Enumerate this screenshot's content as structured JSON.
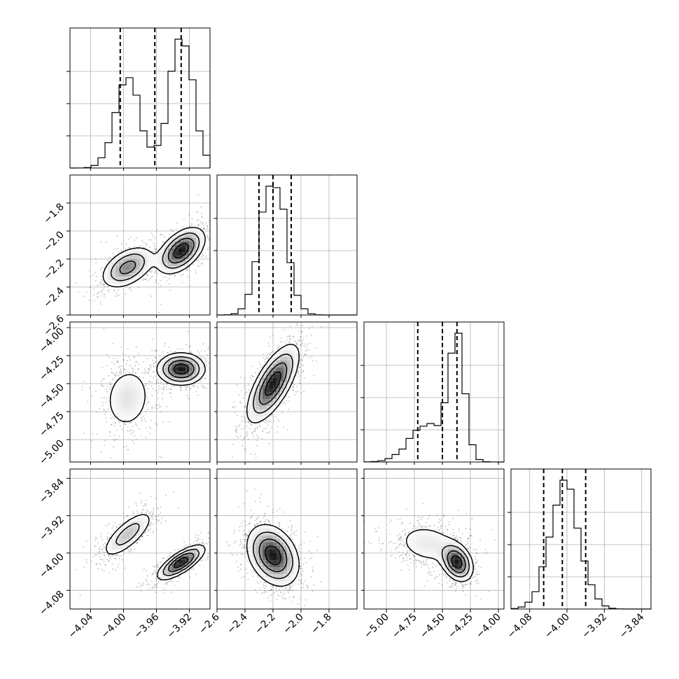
{
  "chart_data": {
    "type": "corner",
    "parameters": [
      {
        "id": "p0",
        "range": [
          -4.065,
          -3.895
        ],
        "ticks": [
          -4.04,
          -4.0,
          -3.96,
          -3.92
        ],
        "tick_labels": [
          "−4.04",
          "−4.00",
          "−3.96",
          "−3.92"
        ],
        "quantiles": [
          -4.004,
          -3.962,
          -3.93
        ],
        "modes": [
          {
            "mean": -3.995,
            "sd": 0.015,
            "weight": 0.42
          },
          {
            "mean": -3.93,
            "sd": 0.014,
            "weight": 0.58
          }
        ]
      },
      {
        "id": "p1",
        "range": [
          -2.6,
          -1.6
        ],
        "ticks": [
          -2.6,
          -2.4,
          -2.2,
          -2.0,
          -1.8
        ],
        "tick_labels": [
          "−2.6",
          "−2.4",
          "−2.2",
          "−2.0",
          "−1.8"
        ],
        "quantiles": [
          -2.3,
          -2.2,
          -2.07
        ],
        "modes": [
          {
            "mean": -2.2,
            "sd": 0.09,
            "weight": 1.0
          }
        ]
      },
      {
        "id": "p2",
        "range": [
          -5.2,
          -3.95
        ],
        "ticks": [
          -5.0,
          -4.75,
          -4.5,
          -4.25,
          -4.0
        ],
        "tick_labels": [
          "−5.00",
          "−4.75",
          "−4.50",
          "−4.25",
          "−4.00"
        ],
        "quantiles": [
          -4.72,
          -4.5,
          -4.37
        ],
        "modes": [
          {
            "mean": -4.63,
            "sd": 0.16,
            "weight": 0.42
          },
          {
            "mean": -4.37,
            "sd": 0.07,
            "weight": 0.58
          }
        ]
      },
      {
        "id": "p3",
        "range": [
          -4.12,
          -3.82
        ],
        "ticks": [
          -4.08,
          -4.0,
          -3.92,
          -3.84
        ],
        "tick_labels": [
          "−4.08",
          "−4.00",
          "−3.92",
          "−3.84"
        ],
        "quantiles": [
          -4.05,
          -4.01,
          -3.96
        ],
        "modes": [
          {
            "mean": -4.005,
            "sd": 0.032,
            "weight": 1.0
          }
        ]
      }
    ],
    "pair_clusters": {
      "1_0": [
        {
          "mean": [
            -3.995,
            -2.26
          ],
          "sd": [
            0.016,
            0.075
          ],
          "corr": 0.45,
          "weight": 0.42
        },
        {
          "mean": [
            -3.93,
            -2.14
          ],
          "sd": [
            0.014,
            0.08
          ],
          "corr": 0.5,
          "weight": 0.58
        }
      ],
      "2_0": [
        {
          "mean": [
            -3.995,
            -4.63
          ],
          "sd": [
            0.016,
            0.16
          ],
          "corr": 0.1,
          "weight": 0.42
        },
        {
          "mean": [
            -3.93,
            -4.37
          ],
          "sd": [
            0.014,
            0.07
          ],
          "corr": 0.0,
          "weight": 0.58
        }
      ],
      "3_0": [
        {
          "mean": [
            -3.995,
            -3.96
          ],
          "sd": [
            0.016,
            0.026
          ],
          "corr": 0.75,
          "weight": 0.42
        },
        {
          "mean": [
            -3.93,
            -4.02
          ],
          "sd": [
            0.014,
            0.018
          ],
          "corr": 0.75,
          "weight": 0.58
        }
      ],
      "2_1": [
        {
          "mean": [
            -2.2,
            -4.5
          ],
          "sd": [
            0.09,
            0.17
          ],
          "corr": 0.7,
          "weight": 1.0
        }
      ],
      "3_1": [
        {
          "mean": [
            -2.2,
            -4.005
          ],
          "sd": [
            0.09,
            0.032
          ],
          "corr": -0.3,
          "weight": 1.0
        }
      ],
      "3_2": [
        {
          "mean": [
            -4.63,
            -3.98
          ],
          "sd": [
            0.16,
            0.025
          ],
          "corr": -0.2,
          "weight": 0.42
        },
        {
          "mean": [
            -4.37,
            -4.02
          ],
          "sd": [
            0.07,
            0.02
          ],
          "corr": -0.3,
          "weight": 0.58
        }
      ]
    },
    "contour_levels": [
      0.12,
      0.3,
      0.55,
      0.82
    ],
    "grid": true,
    "xlabel": "",
    "ylabel": "",
    "title": ""
  }
}
